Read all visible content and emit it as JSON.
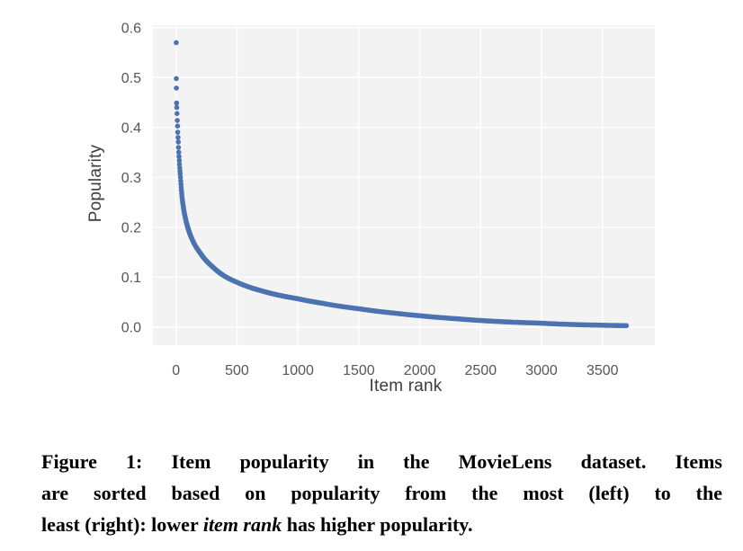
{
  "figure": {
    "caption": {
      "line1": "Figure 1: Item popularity in the MovieLens dataset. Items",
      "line2": "are sorted based on popularity from the most (left) to the",
      "line3_before": "least (right): lower ",
      "line3_italic": "item rank",
      "line3_after": " has higher popularity."
    }
  },
  "chart_data": {
    "type": "scatter",
    "title": "",
    "xlabel": "Item rank",
    "ylabel": "Popularity",
    "xticks": [
      0,
      500,
      1000,
      1500,
      2000,
      2500,
      3000,
      3500
    ],
    "xtick_labels": [
      "0",
      "500",
      "1000",
      "1500",
      "2000",
      "2500",
      "3000",
      "3500"
    ],
    "yticks": [
      0.0,
      0.1,
      0.2,
      0.3,
      0.4,
      0.5,
      0.6
    ],
    "ytick_labels": [
      "0.0",
      "0.1",
      "0.2",
      "0.3",
      "0.4",
      "0.5",
      "0.6"
    ],
    "xlim": [
      -190,
      3930
    ],
    "ylim": [
      -0.036,
      0.605
    ],
    "grid": true,
    "legend": "none",
    "rank_range": [
      1,
      3700
    ],
    "curve_anchors": [
      [
        1,
        0.57
      ],
      [
        2,
        0.498
      ],
      [
        3,
        0.479
      ],
      [
        4,
        0.449
      ],
      [
        6,
        0.44
      ],
      [
        8,
        0.428
      ],
      [
        12,
        0.403
      ],
      [
        18,
        0.371
      ],
      [
        25,
        0.338
      ],
      [
        35,
        0.304
      ],
      [
        50,
        0.259
      ],
      [
        70,
        0.226
      ],
      [
        100,
        0.197
      ],
      [
        150,
        0.167
      ],
      [
        200,
        0.148
      ],
      [
        300,
        0.121
      ],
      [
        400,
        0.102
      ],
      [
        500,
        0.09
      ],
      [
        700,
        0.073
      ],
      [
        1000,
        0.057
      ],
      [
        1200,
        0.048
      ],
      [
        1500,
        0.037
      ],
      [
        1800,
        0.028
      ],
      [
        2000,
        0.023
      ],
      [
        2300,
        0.017
      ],
      [
        2600,
        0.012
      ],
      [
        3000,
        0.008
      ],
      [
        3300,
        0.005
      ],
      [
        3500,
        0.004
      ],
      [
        3700,
        0.003
      ]
    ],
    "style": {
      "marker_color": "#4C72B0",
      "marker_radius": 2.8,
      "plot_background": "#f3f3f3",
      "gridline_color": "#ffffff",
      "tick_label_color": "#565656",
      "axis_label_color": "#3d3d3d"
    }
  }
}
